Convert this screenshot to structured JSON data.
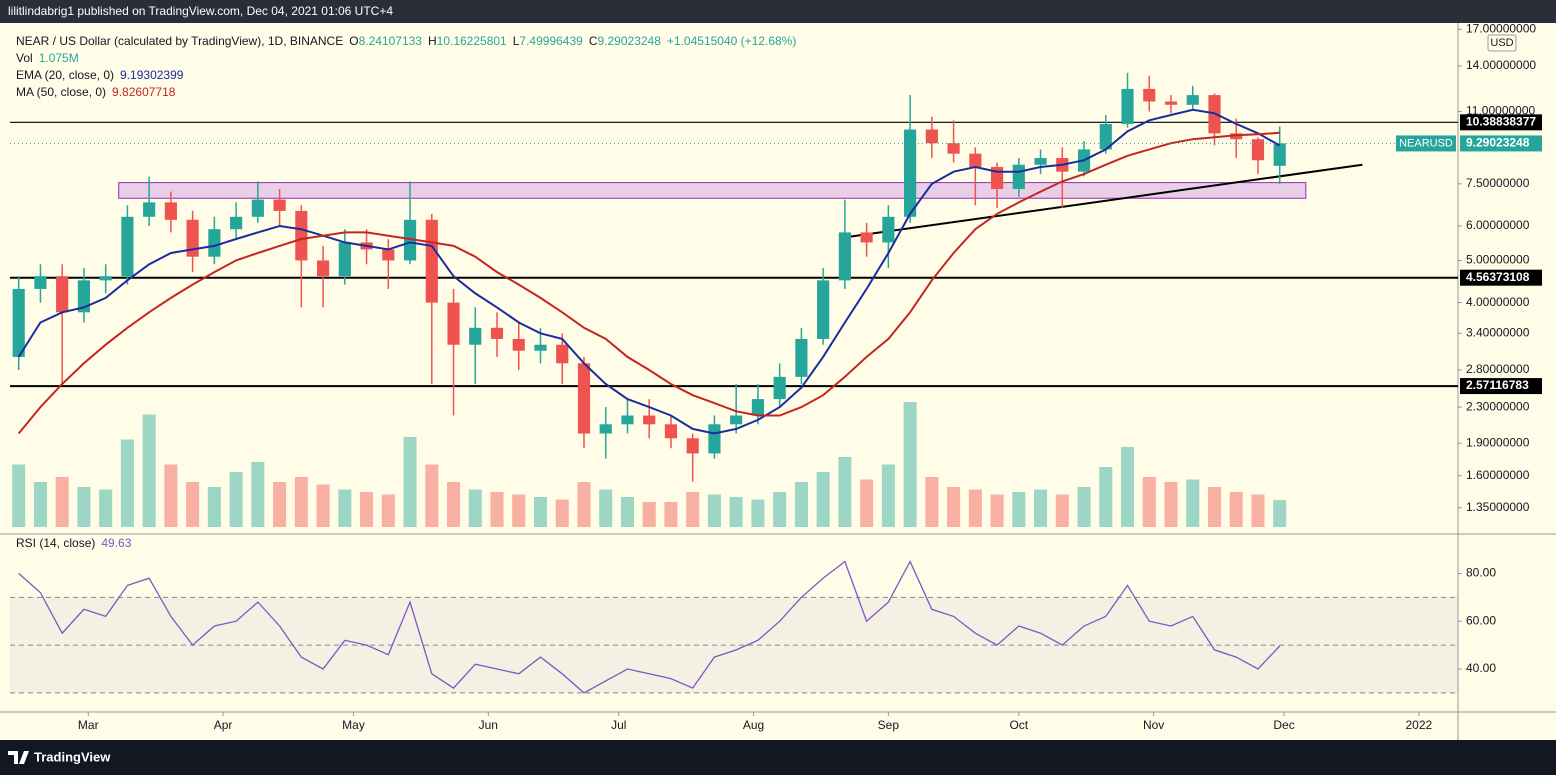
{
  "header": {
    "text": "lilitlindabrig1 published on TradingView.com, Dec 04, 2021 01:06 UTC+4"
  },
  "footer": {
    "brand": "TradingView"
  },
  "chart_data": {
    "type": "candlestick",
    "title": "NEAR / US Dollar (calculated by TradingView), 1D, BINANCE",
    "ohlc_legend": [
      {
        "label": "O",
        "value": "8.24107133"
      },
      {
        "label": "H",
        "value": "10.16225801"
      },
      {
        "label": "L",
        "value": "7.49996439"
      },
      {
        "label": "C",
        "value": "9.29023248"
      }
    ],
    "change": "+1.04515040 (+12.68%)",
    "currency": "USD",
    "log_scale": true,
    "grid": false,
    "up_color": "#26a69a",
    "down_color": "#ef5350",
    "xlim": [
      0,
      333
    ],
    "xticks": [
      {
        "value": 18,
        "label": "Mar"
      },
      {
        "value": 49,
        "label": "Apr"
      },
      {
        "value": 79,
        "label": "May"
      },
      {
        "value": 110,
        "label": "Jun"
      },
      {
        "value": 140,
        "label": "Jul"
      },
      {
        "value": 171,
        "label": "Aug"
      },
      {
        "value": 202,
        "label": "Sep"
      },
      {
        "value": 232,
        "label": "Oct"
      },
      {
        "value": 263,
        "label": "Nov"
      },
      {
        "value": 293,
        "label": "Dec"
      },
      {
        "value": 324,
        "label": "2022"
      }
    ],
    "ylim": [
      1.2,
      17.3
    ],
    "yticks": [
      {
        "value": 17,
        "label": "17.00000000"
      },
      {
        "value": 14,
        "label": "14.00000000"
      },
      {
        "value": 11,
        "label": "11.00000000"
      },
      {
        "value": 7.5,
        "label": "7.50000000"
      },
      {
        "value": 6,
        "label": "6.00000000"
      },
      {
        "value": 5,
        "label": "5.00000000"
      },
      {
        "value": 4,
        "label": "4.00000000"
      },
      {
        "value": 3.4,
        "label": "3.40000000"
      },
      {
        "value": 2.8,
        "label": "2.80000000"
      },
      {
        "value": 2.3,
        "label": "2.30000000"
      },
      {
        "value": 1.9,
        "label": "1.90000000"
      },
      {
        "value": 1.6,
        "label": "1.60000000"
      },
      {
        "value": 1.35,
        "label": "1.35000000"
      }
    ],
    "x": [
      2,
      7,
      12,
      17,
      22,
      27,
      32,
      37,
      42,
      47,
      52,
      57,
      62,
      67,
      72,
      77,
      82,
      87,
      92,
      97,
      102,
      107,
      112,
      117,
      122,
      127,
      132,
      137,
      142,
      147,
      152,
      157,
      162,
      167,
      172,
      177,
      182,
      187,
      192,
      197,
      202,
      207,
      212,
      217,
      222,
      227,
      232,
      237,
      242,
      247,
      252,
      257,
      262,
      267,
      272,
      277,
      282,
      287,
      292
    ],
    "open": [
      3.0,
      4.3,
      4.6,
      3.8,
      4.5,
      4.6,
      6.3,
      6.8,
      6.2,
      5.1,
      5.9,
      6.3,
      6.9,
      6.5,
      5.0,
      4.6,
      5.5,
      5.3,
      5.0,
      6.2,
      4.0,
      3.2,
      3.5,
      3.3,
      3.1,
      3.2,
      2.9,
      2.0,
      2.1,
      2.2,
      2.1,
      1.95,
      1.8,
      2.1,
      2.2,
      2.4,
      2.7,
      3.3,
      4.5,
      5.8,
      5.5,
      6.3,
      10.0,
      9.3,
      8.8,
      8.2,
      7.3,
      8.3,
      8.6,
      8.0,
      9.0,
      10.3,
      12.4,
      11.6,
      11.4,
      12.0,
      9.8,
      9.5,
      8.25
    ],
    "high": [
      4.6,
      4.9,
      4.9,
      4.8,
      4.9,
      6.7,
      7.8,
      7.2,
      6.5,
      6.3,
      6.8,
      7.6,
      7.3,
      6.7,
      5.4,
      5.9,
      5.9,
      5.6,
      7.6,
      6.4,
      4.3,
      3.9,
      3.8,
      3.6,
      3.5,
      3.4,
      3.0,
      2.3,
      2.4,
      2.4,
      2.2,
      2.0,
      2.2,
      2.6,
      2.6,
      2.9,
      3.5,
      4.8,
      6.9,
      6.1,
      6.7,
      12.0,
      10.7,
      10.5,
      9.1,
      8.4,
      8.6,
      9.0,
      9.1,
      9.4,
      10.8,
      13.5,
      13.3,
      12.0,
      12.6,
      12.1,
      10.6,
      9.6,
      10.16
    ],
    "low": [
      2.8,
      4.0,
      2.6,
      3.6,
      4.2,
      4.4,
      6.0,
      5.8,
      4.7,
      4.9,
      5.6,
      6.1,
      6.0,
      3.9,
      3.9,
      4.4,
      4.9,
      4.3,
      4.9,
      2.6,
      2.2,
      2.6,
      3.0,
      2.8,
      2.9,
      2.6,
      1.85,
      1.75,
      2.0,
      1.95,
      1.85,
      1.55,
      1.75,
      2.0,
      2.1,
      2.3,
      2.6,
      3.2,
      4.3,
      5.1,
      4.8,
      6.1,
      8.6,
      8.4,
      6.7,
      6.6,
      7.0,
      7.9,
      6.6,
      7.8,
      8.8,
      10.1,
      11.0,
      10.9,
      11.1,
      9.2,
      8.6,
      7.9,
      7.5
    ],
    "close": [
      4.3,
      4.6,
      3.8,
      4.5,
      4.6,
      6.3,
      6.8,
      6.2,
      5.1,
      5.9,
      6.3,
      6.9,
      6.5,
      5.0,
      4.6,
      5.5,
      5.3,
      5.0,
      6.2,
      4.0,
      3.2,
      3.5,
      3.3,
      3.1,
      3.2,
      2.9,
      2.0,
      2.1,
      2.2,
      2.1,
      1.95,
      1.8,
      2.1,
      2.2,
      2.4,
      2.7,
      3.3,
      4.5,
      5.8,
      5.5,
      6.3,
      10.0,
      9.3,
      8.8,
      8.2,
      7.3,
      8.3,
      8.6,
      8.0,
      9.0,
      10.3,
      12.4,
      11.6,
      11.4,
      12.0,
      9.8,
      9.5,
      8.5,
      9.29
    ],
    "series": [
      {
        "name": "EMA (20, close, 0)",
        "value_label": "9.19302399",
        "color": "#1a2d9c",
        "values": [
          3.0,
          3.6,
          3.8,
          3.9,
          4.1,
          4.5,
          4.9,
          5.2,
          5.3,
          5.4,
          5.6,
          5.8,
          6.0,
          5.9,
          5.7,
          5.5,
          5.4,
          5.3,
          5.5,
          5.4,
          4.6,
          4.2,
          3.9,
          3.6,
          3.4,
          3.3,
          2.9,
          2.6,
          2.4,
          2.3,
          2.2,
          2.05,
          2.0,
          2.05,
          2.15,
          2.3,
          2.55,
          3.0,
          3.6,
          4.3,
          5.2,
          6.4,
          7.5,
          8.0,
          8.2,
          8.0,
          8.0,
          8.2,
          8.3,
          8.5,
          9.0,
          9.9,
          10.5,
          10.8,
          11.1,
          10.9,
          10.3,
          9.8,
          9.19
        ]
      },
      {
        "name": "MA (50, close, 0)",
        "value_label": "9.82607718",
        "color": "#c2261f",
        "values": [
          2.0,
          2.3,
          2.6,
          2.9,
          3.2,
          3.5,
          3.8,
          4.1,
          4.4,
          4.7,
          5.0,
          5.2,
          5.4,
          5.6,
          5.7,
          5.8,
          5.8,
          5.7,
          5.6,
          5.5,
          5.4,
          5.1,
          4.7,
          4.4,
          4.1,
          3.8,
          3.5,
          3.3,
          3.0,
          2.8,
          2.6,
          2.45,
          2.35,
          2.25,
          2.2,
          2.2,
          2.3,
          2.45,
          2.7,
          3.0,
          3.3,
          3.8,
          4.5,
          5.2,
          5.9,
          6.4,
          6.8,
          7.2,
          7.6,
          7.9,
          8.3,
          8.7,
          9.0,
          9.3,
          9.5,
          9.6,
          9.7,
          9.75,
          9.83
        ]
      }
    ],
    "volume": {
      "name": "Vol",
      "value_label": "1.075M",
      "values": [
        2.5,
        1.8,
        2.0,
        1.6,
        1.5,
        3.5,
        4.5,
        2.5,
        1.8,
        1.6,
        2.2,
        2.6,
        1.8,
        2.0,
        1.7,
        1.5,
        1.4,
        1.3,
        3.6,
        2.5,
        1.8,
        1.5,
        1.4,
        1.3,
        1.2,
        1.1,
        1.8,
        1.5,
        1.2,
        1.0,
        1.0,
        1.4,
        1.3,
        1.2,
        1.1,
        1.4,
        1.8,
        2.2,
        2.8,
        1.9,
        2.5,
        5.0,
        2.0,
        1.6,
        1.5,
        1.3,
        1.4,
        1.5,
        1.3,
        1.6,
        2.4,
        3.2,
        2.0,
        1.8,
        1.9,
        1.6,
        1.4,
        1.3,
        1.075
      ]
    },
    "hlines": [
      {
        "value": 10.38838377,
        "label": "10.38838377"
      },
      {
        "value": 4.56373108,
        "label": "4.56373108"
      },
      {
        "value": 2.57116783,
        "label": "2.57116783"
      }
    ],
    "last_price": {
      "name": "NEARUSD",
      "value": 9.29023248,
      "label": "9.29023248",
      "color": "#26a69a"
    },
    "zone": {
      "x": [
        25,
        298
      ],
      "y": [
        6.95,
        7.55
      ],
      "color": "#e1bee7"
    },
    "trendline": {
      "x": [
        192,
        311
      ],
      "y": [
        5.65,
        8.3
      ]
    },
    "rsi": {
      "name": "RSI (14, close)",
      "value_label": "49.63",
      "color": "#7e57c2",
      "ylim": [
        22,
        94
      ],
      "yticks": [
        {
          "value": 80,
          "label": "80.00"
        },
        {
          "value": 60,
          "label": "60.00"
        },
        {
          "value": 40,
          "label": "40.00"
        }
      ],
      "levels": [
        30,
        50,
        70
      ],
      "values": [
        80,
        72,
        55,
        65,
        62,
        75,
        78,
        62,
        50,
        58,
        60,
        68,
        58,
        45,
        40,
        52,
        50,
        46,
        68,
        38,
        32,
        42,
        40,
        38,
        45,
        38,
        30,
        35,
        40,
        38,
        36,
        32,
        45,
        48,
        52,
        60,
        70,
        78,
        85,
        60,
        68,
        85,
        65,
        62,
        55,
        50,
        58,
        55,
        50,
        58,
        62,
        75,
        60,
        58,
        62,
        48,
        45,
        40,
        49.63
      ]
    }
  }
}
